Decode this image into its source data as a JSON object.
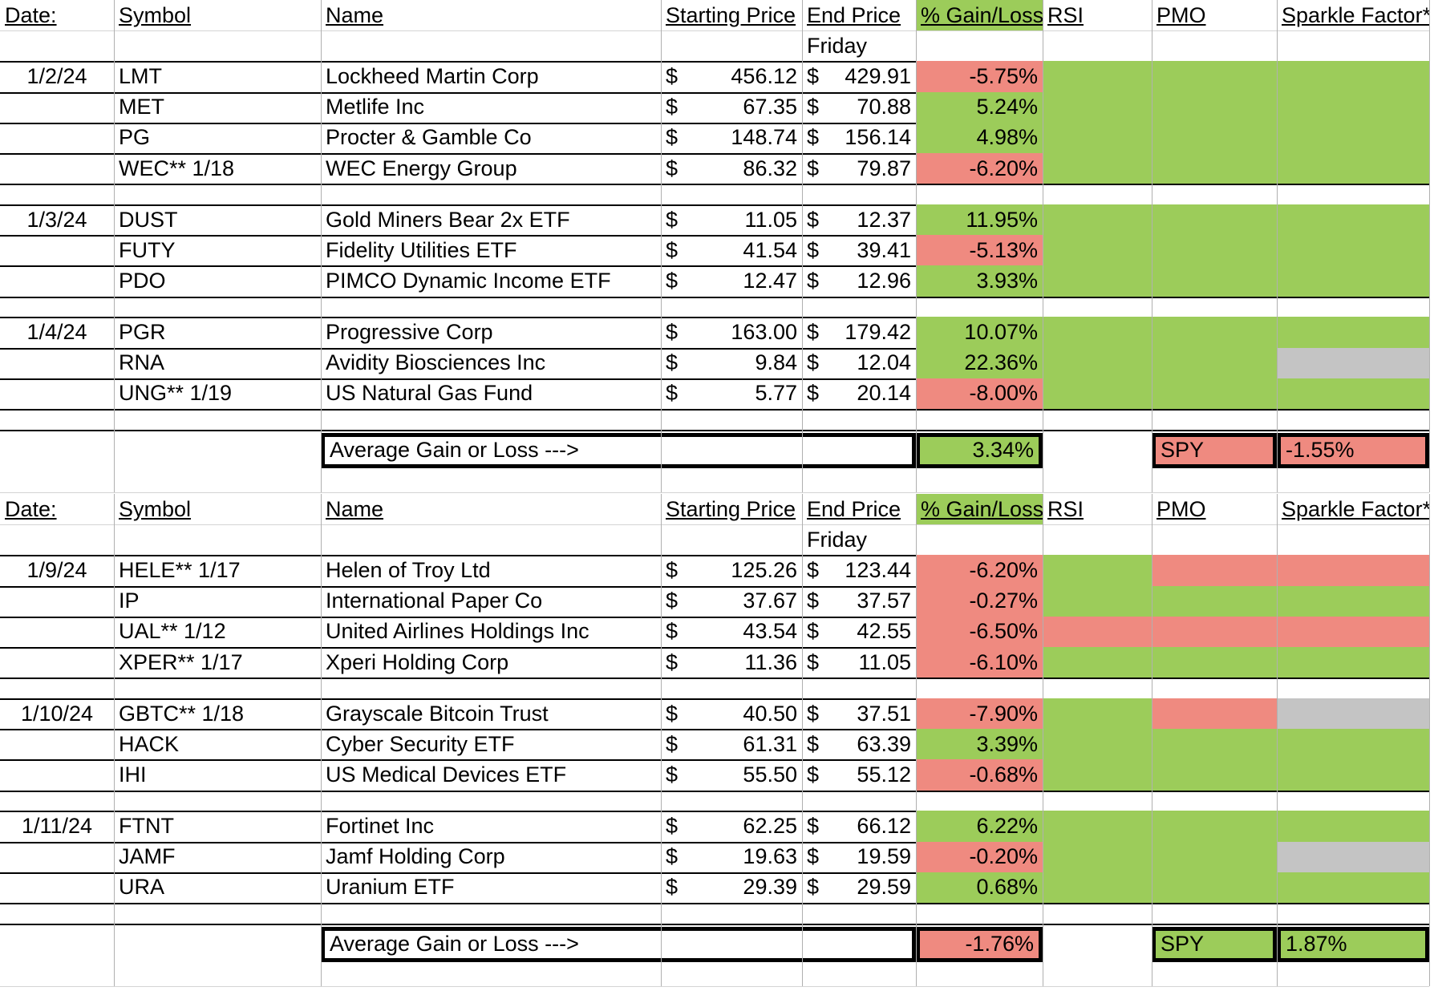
{
  "colors": {
    "loss": "#ef8a80",
    "gain": "#9ccc5a",
    "neutral": "#c4c4c4"
  },
  "currency_symbol": "$",
  "headers": {
    "date": "Date:",
    "symbol": "Symbol",
    "name": "Name",
    "start": "Starting Price",
    "end": "End Price",
    "gain": "% Gain/Loss",
    "rsi": "RSI",
    "pmo": "PMO",
    "sparkle": "Sparkle Factor*",
    "end_sub": "Friday"
  },
  "sections": [
    {
      "rows": [
        {
          "date": "1/2/24",
          "symbol": "LMT",
          "name": "Lockheed Martin Corp",
          "start": "456.12",
          "end": "429.91",
          "gain": "-5.75%",
          "gain_status": "loss",
          "rsi": "gain",
          "pmo": "gain",
          "sparkle": "gain"
        },
        {
          "date": "",
          "symbol": "MET",
          "name": "Metlife Inc",
          "start": "67.35",
          "end": "70.88",
          "gain": "5.24%",
          "gain_status": "gain",
          "rsi": "gain",
          "pmo": "gain",
          "sparkle": "gain"
        },
        {
          "date": "",
          "symbol": "PG",
          "name": "Procter & Gamble Co",
          "start": "148.74",
          "end": "156.14",
          "gain": "4.98%",
          "gain_status": "gain",
          "rsi": "gain",
          "pmo": "gain",
          "sparkle": "gain"
        },
        {
          "date": "",
          "symbol": "WEC** 1/18",
          "name": "WEC Energy Group",
          "start": "86.32",
          "end": "79.87",
          "gain": "-6.20%",
          "gain_status": "loss",
          "rsi": "gain",
          "pmo": "gain",
          "sparkle": "gain"
        },
        {
          "spacer": true
        },
        {
          "date": "1/3/24",
          "symbol": "DUST",
          "name": "Gold Miners Bear 2x ETF",
          "start": "11.05",
          "end": "12.37",
          "gain": "11.95%",
          "gain_status": "gain",
          "rsi": "gain",
          "pmo": "gain",
          "sparkle": "gain"
        },
        {
          "date": "",
          "symbol": "FUTY",
          "name": "Fidelity Utilities ETF",
          "start": "41.54",
          "end": "39.41",
          "gain": "-5.13%",
          "gain_status": "loss",
          "rsi": "gain",
          "pmo": "gain",
          "sparkle": "gain"
        },
        {
          "date": "",
          "symbol": "PDO",
          "name": "PIMCO Dynamic Income ETF",
          "start": "12.47",
          "end": "12.96",
          "gain": "3.93%",
          "gain_status": "gain",
          "rsi": "gain",
          "pmo": "gain",
          "sparkle": "gain"
        },
        {
          "spacer": true
        },
        {
          "date": "1/4/24",
          "symbol": "PGR",
          "name": "Progressive Corp",
          "start": "163.00",
          "end": "179.42",
          "gain": "10.07%",
          "gain_status": "gain",
          "rsi": "gain",
          "pmo": "gain",
          "sparkle": "gain"
        },
        {
          "date": "",
          "symbol": "RNA",
          "name": "Avidity Biosciences Inc",
          "start": "9.84",
          "end": "12.04",
          "gain": "22.36%",
          "gain_status": "gain",
          "rsi": "gain",
          "pmo": "gain",
          "sparkle": "neutral"
        },
        {
          "date": "",
          "symbol": "UNG** 1/19",
          "name": "US Natural Gas Fund",
          "start": "5.77",
          "end": "20.14",
          "gain": "-8.00%",
          "gain_status": "loss",
          "rsi": "gain",
          "pmo": "gain",
          "sparkle": "gain"
        },
        {
          "spacer": true
        }
      ],
      "summary": {
        "label": "Average Gain or Loss --->",
        "value": "3.34%",
        "status": "gain",
        "spy_label": "SPY",
        "spy_value": "-1.55%",
        "spy_status": "loss"
      }
    },
    {
      "rows": [
        {
          "date": "1/9/24",
          "symbol": "HELE** 1/17",
          "name": "Helen of Troy Ltd",
          "start": "125.26",
          "end": "123.44",
          "gain": "-6.20%",
          "gain_status": "loss",
          "rsi": "gain",
          "pmo": "loss",
          "sparkle": "loss"
        },
        {
          "date": "",
          "symbol": "IP",
          "name": "International Paper Co",
          "start": "37.67",
          "end": "37.57",
          "gain": "-0.27%",
          "gain_status": "loss",
          "rsi": "gain",
          "pmo": "gain",
          "sparkle": "gain"
        },
        {
          "date": "",
          "symbol": "UAL** 1/12",
          "name": "United Airlines Holdings Inc",
          "start": "43.54",
          "end": "42.55",
          "gain": "-6.50%",
          "gain_status": "loss",
          "rsi": "loss",
          "pmo": "loss",
          "sparkle": "loss"
        },
        {
          "date": "",
          "symbol": "XPER** 1/17",
          "name": "Xperi Holding Corp",
          "start": "11.36",
          "end": "11.05",
          "gain": "-6.10%",
          "gain_status": "loss",
          "rsi": "gain",
          "pmo": "gain",
          "sparkle": "gain"
        },
        {
          "spacer": true
        },
        {
          "date": "1/10/24",
          "symbol": "GBTC** 1/18",
          "name": "Grayscale Bitcoin Trust",
          "start": "40.50",
          "end": "37.51",
          "gain": "-7.90%",
          "gain_status": "loss",
          "rsi": "gain",
          "pmo": "loss",
          "sparkle": "neutral"
        },
        {
          "date": "",
          "symbol": "HACK",
          "name": "Cyber Security ETF",
          "start": "61.31",
          "end": "63.39",
          "gain": "3.39%",
          "gain_status": "gain",
          "rsi": "gain",
          "pmo": "gain",
          "sparkle": "gain"
        },
        {
          "date": "",
          "symbol": "IHI",
          "name": "US Medical Devices ETF",
          "start": "55.50",
          "end": "55.12",
          "gain": "-0.68%",
          "gain_status": "loss",
          "rsi": "gain",
          "pmo": "gain",
          "sparkle": "gain"
        },
        {
          "spacer": true
        },
        {
          "date": "1/11/24",
          "symbol": "FTNT",
          "name": "Fortinet Inc",
          "start": "62.25",
          "end": "66.12",
          "gain": "6.22%",
          "gain_status": "gain",
          "rsi": "gain",
          "pmo": "gain",
          "sparkle": "gain"
        },
        {
          "date": "",
          "symbol": "JAMF",
          "name": "Jamf Holding Corp",
          "start": "19.63",
          "end": "19.59",
          "gain": "-0.20%",
          "gain_status": "loss",
          "rsi": "gain",
          "pmo": "gain",
          "sparkle": "neutral"
        },
        {
          "date": "",
          "symbol": "URA",
          "name": "Uranium ETF",
          "start": "29.39",
          "end": "29.59",
          "gain": "0.68%",
          "gain_status": "gain",
          "rsi": "gain",
          "pmo": "gain",
          "sparkle": "gain"
        },
        {
          "spacer": true
        }
      ],
      "summary": {
        "label": "Average Gain or Loss --->",
        "value": "-1.76%",
        "status": "loss",
        "spy_label": "SPY",
        "spy_value": "1.87%",
        "spy_status": "gain"
      }
    }
  ]
}
